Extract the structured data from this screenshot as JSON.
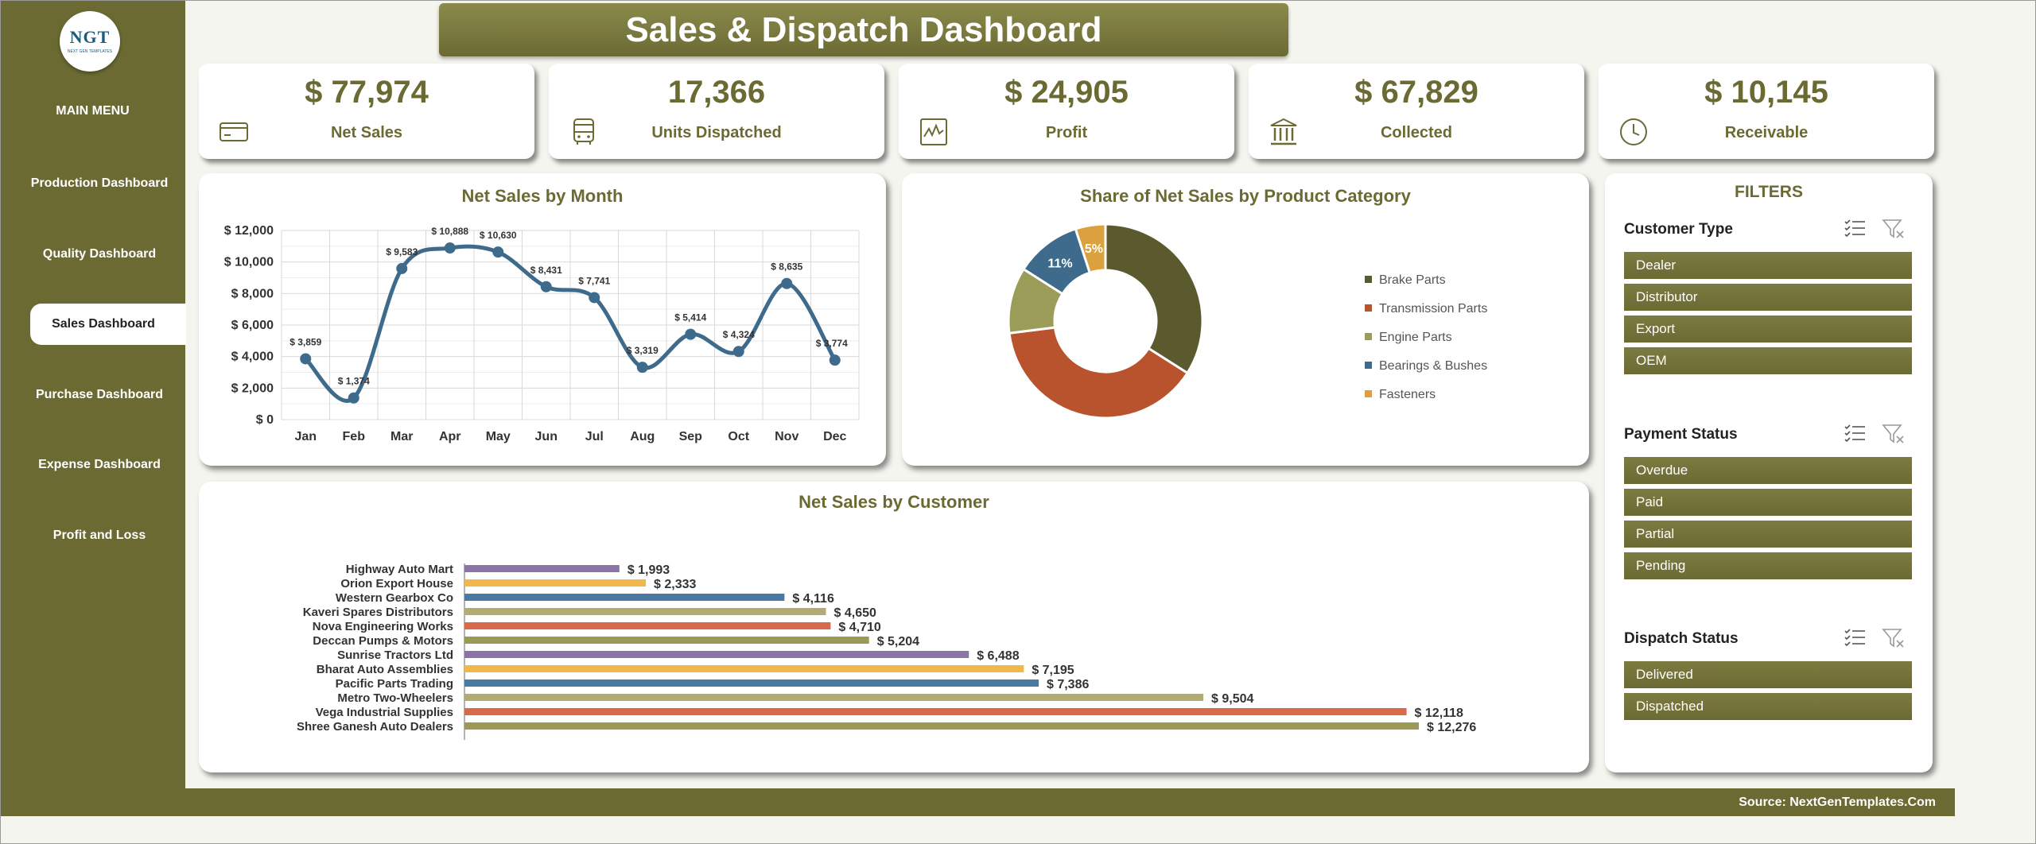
{
  "logo": {
    "text": "NGT",
    "subtext": "NEXT GEN TEMPLATES"
  },
  "sidebar": {
    "menu_title": "MAIN MENU",
    "items": [
      {
        "label": "Production Dashboard",
        "active": false
      },
      {
        "label": "Quality Dashboard",
        "active": false
      },
      {
        "label": "Sales Dashboard",
        "active": true
      },
      {
        "label": "Purchase Dashboard",
        "active": false
      },
      {
        "label": "Expense Dashboard",
        "active": false
      },
      {
        "label": "Profit and Loss",
        "active": false
      }
    ]
  },
  "header": {
    "title": "Sales & Dispatch Dashboard"
  },
  "kpis": [
    {
      "value": "$ 77,974",
      "label": "Net Sales",
      "icon": "credit-card-icon"
    },
    {
      "value": "17,366",
      "label": "Units Dispatched",
      "icon": "bus-icon"
    },
    {
      "value": "$ 24,905",
      "label": "Profit",
      "icon": "line-chart-icon"
    },
    {
      "value": "$ 67,829",
      "label": "Collected",
      "icon": "bank-icon"
    },
    {
      "value": "$ 10,145",
      "label": "Receivable",
      "icon": "clock-icon"
    }
  ],
  "colors": {
    "olive": "#6b6a33",
    "line": "#3e6b8c",
    "brake": "#5b5a2e",
    "transmission": "#b8532e",
    "engine": "#9c9c5a",
    "bearings": "#3e6b8c",
    "fasteners": "#dba13e"
  },
  "chart_data": [
    {
      "type": "line",
      "title": "Net Sales by Month",
      "categories": [
        "Jan",
        "Feb",
        "Mar",
        "Apr",
        "May",
        "Jun",
        "Jul",
        "Aug",
        "Sep",
        "Oct",
        "Nov",
        "Dec"
      ],
      "values": [
        3859,
        1374,
        9583,
        10888,
        10630,
        8431,
        7741,
        3319,
        5414,
        4324,
        8635,
        3774
      ],
      "data_labels": [
        "$ 3,859",
        "$ 1,374",
        "$ 9,583",
        "$ 10,888",
        "$ 10,630",
        "$ 8,431",
        "$ 7,741",
        "$ 3,319",
        "$ 5,414",
        "$ 4,324",
        "$ 8,635",
        "$ 3,774"
      ],
      "ylim": [
        0,
        12000
      ],
      "yticks": [
        "$ 0",
        "$ 2,000",
        "$ 4,000",
        "$ 6,000",
        "$ 8,000",
        "$ 10,000",
        "$ 12,000"
      ],
      "grid": true
    },
    {
      "type": "pie",
      "title": "Share of Net Sales by Product Category",
      "labels": [
        "Brake Parts",
        "Transmission Parts",
        "Engine Parts",
        "Bearings & Bushes",
        "Fasteners"
      ],
      "values": [
        34,
        39,
        11,
        11,
        5
      ],
      "data_labels": [
        "",
        "",
        "",
        "11%",
        "5%"
      ],
      "legend": "right"
    },
    {
      "type": "bar",
      "title": "Net Sales by Customer",
      "categories": [
        "Highway Auto Mart",
        "Orion Export House",
        "Western Gearbox Co",
        "Kaveri Spares Distributors",
        "Nova Engineering Works",
        "Deccan Pumps & Motors",
        "Sunrise Tractors Ltd",
        "Bharat Auto Assemblies",
        "Pacific Parts Trading",
        "Metro Two-Wheelers",
        "Vega Industrial Supplies",
        "Shree Ganesh Auto Dealers"
      ],
      "values": [
        1993,
        2333,
        4116,
        4650,
        4710,
        5204,
        6488,
        7195,
        7386,
        9504,
        12118,
        12276
      ],
      "data_labels": [
        "$ 1,993",
        "$ 2,333",
        "$ 4,116",
        "$ 4,650",
        "$ 4,710",
        "$ 5,204",
        "$ 6,488",
        "$ 7,195",
        "$ 7,386",
        "$ 9,504",
        "$ 12,118",
        "$ 12,276"
      ],
      "bar_colors": [
        "#8a74a8",
        "#f0b84a",
        "#4a7aa0",
        "#b2ab72",
        "#d8694a",
        "#9a9a56",
        "#8a74a8",
        "#f0b84a",
        "#4a7aa0",
        "#b2ab72",
        "#d8694a",
        "#9a9a56"
      ],
      "orientation": "horizontal"
    }
  ],
  "filters": {
    "title": "FILTERS",
    "groups": [
      {
        "title": "Customer Type",
        "items": [
          "Dealer",
          "Distributor",
          "Export",
          "OEM"
        ]
      },
      {
        "title": "Payment Status",
        "items": [
          "Overdue",
          "Paid",
          "Partial",
          "Pending"
        ]
      },
      {
        "title": "Dispatch Status",
        "items": [
          "Delivered",
          "Dispatched"
        ]
      }
    ]
  },
  "footer": {
    "source": "Source: NextGenTemplates.Com"
  }
}
